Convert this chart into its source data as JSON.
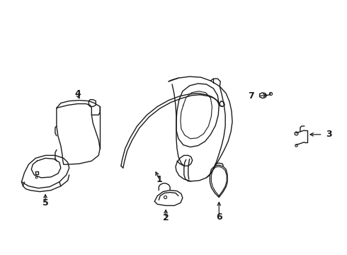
{
  "background_color": "#ffffff",
  "line_color": "#1a1a1a",
  "line_width": 1.0,
  "figsize": [
    4.9,
    3.6
  ],
  "dpi": 100
}
